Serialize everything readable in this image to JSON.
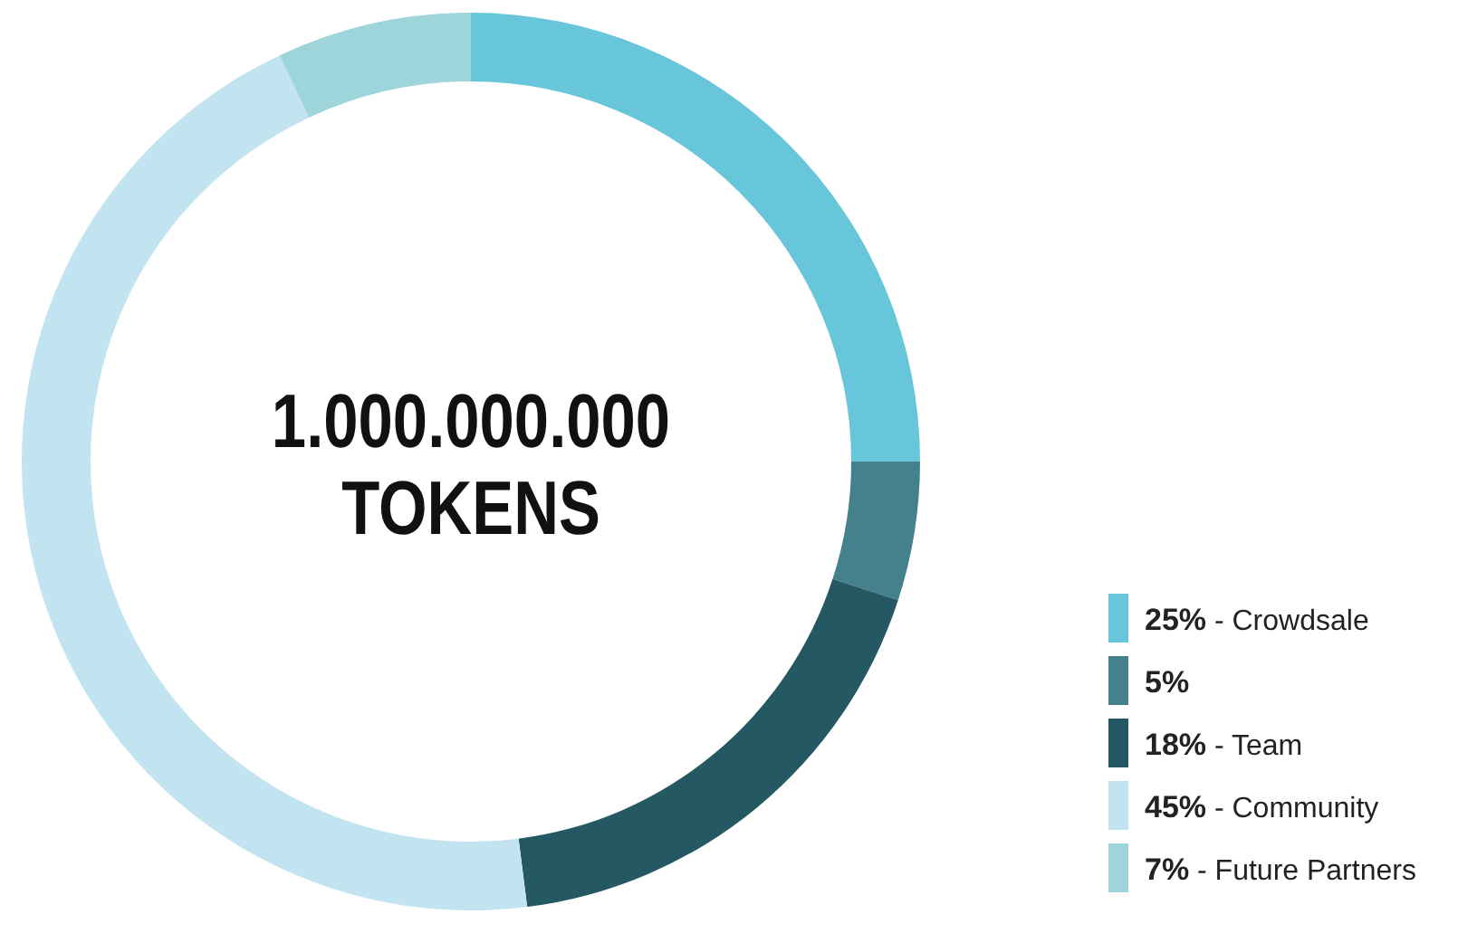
{
  "chart_data": {
    "type": "donut",
    "categories": [
      "25% - Crowdsale",
      "5%",
      "18% - Team",
      "45% - Community",
      "7% - Future Partners"
    ],
    "values": [
      25,
      5,
      18,
      45,
      7
    ],
    "colors": [
      "#67c6d9",
      "#44818c",
      "#245862",
      "#c2e4f0",
      "#9dd5da"
    ],
    "annotations": [
      "1.000.000.000",
      "TOKENS"
    ],
    "legend": "bottom right"
  }
}
